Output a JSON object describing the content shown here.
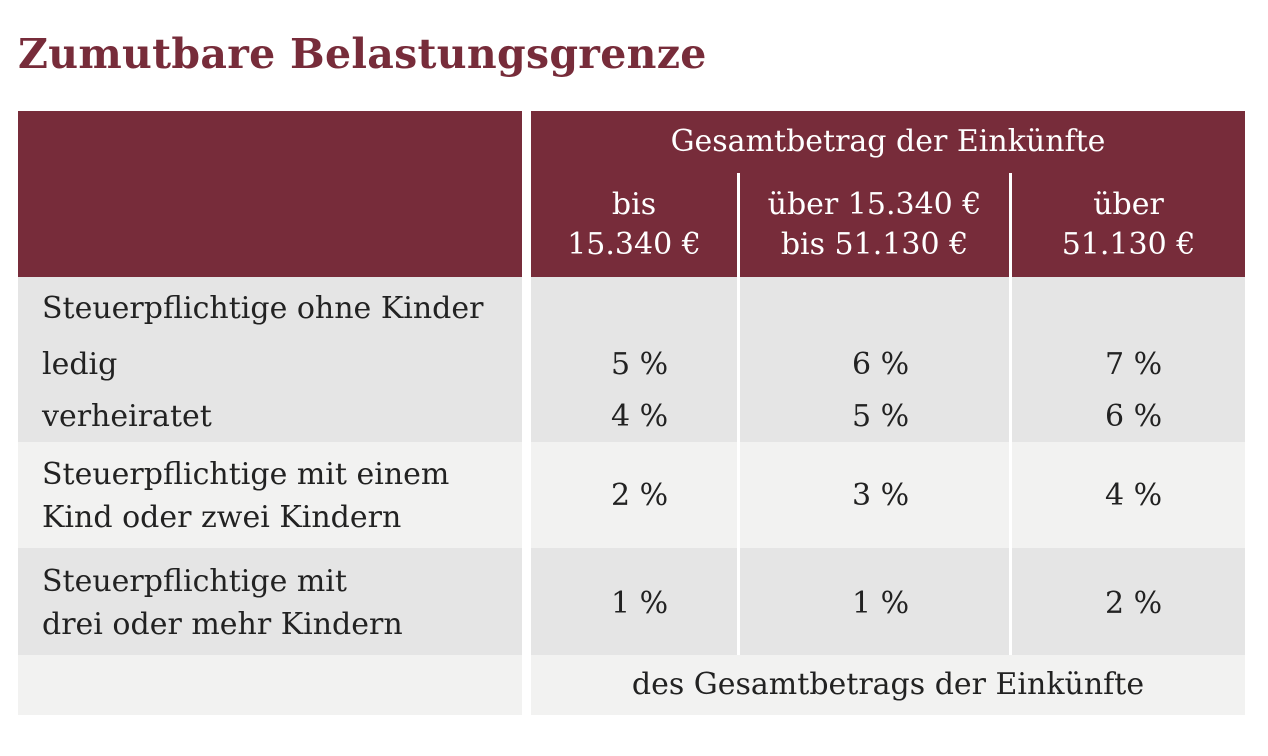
{
  "title": "Zumutbare Belastungsgrenze",
  "colors": {
    "accent": "#772c3a",
    "row_dark": "#e5e5e5",
    "row_light": "#f2f2f1",
    "text": "#222222"
  },
  "header": {
    "group_label": "Gesamtbetrag der Einkünfte",
    "columns": [
      {
        "line1": "bis",
        "line2": "15.340 €"
      },
      {
        "line1": "über 15.340 €",
        "line2": "bis 51.130 €"
      },
      {
        "line1": "über",
        "line2": "51.130 €"
      }
    ]
  },
  "rows": {
    "no_children": {
      "heading": "Steuerpflichtige ohne Kinder",
      "ledig": {
        "label": "ledig",
        "values": [
          "5 %",
          "6 %",
          "7 %"
        ]
      },
      "verheiratet": {
        "label": "verheiratet",
        "values": [
          "4 %",
          "5 %",
          "6 %"
        ]
      }
    },
    "one_two_children": {
      "label_line1": "Steuerpflichtige mit einem",
      "label_line2": "Kind oder zwei Kindern",
      "values": [
        "2 %",
        "3 %",
        "4 %"
      ]
    },
    "three_plus_children": {
      "label_line1": "Steuerpflichtige mit",
      "label_line2": "drei oder mehr Kindern",
      "values": [
        "1 %",
        "1 %",
        "2 %"
      ]
    }
  },
  "footer": "des Gesamtbetrags der Einkünfte"
}
